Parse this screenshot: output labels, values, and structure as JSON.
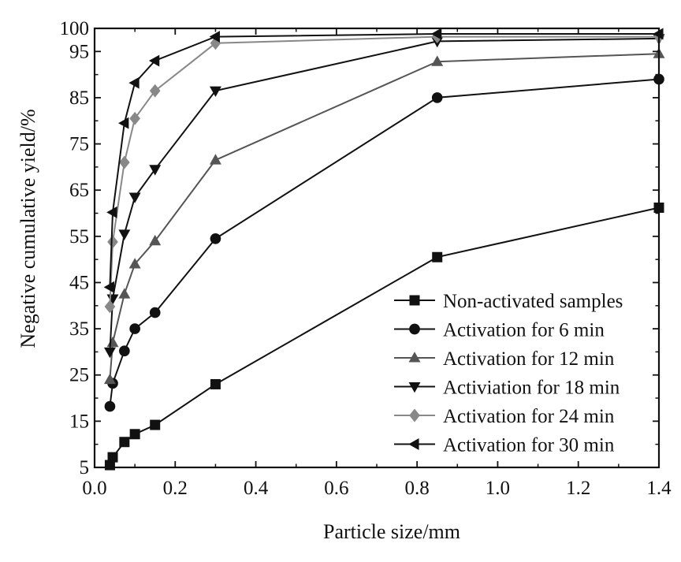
{
  "chart_data": {
    "type": "line",
    "xlabel": "Particle size/mm",
    "ylabel": "Negative cumulative yield/%",
    "xlim": [
      0.0,
      1.4
    ],
    "ylim": [
      5,
      100
    ],
    "x_ticks": [
      "0.0",
      "0.2",
      "0.4",
      "0.6",
      "0.8",
      "1.0",
      "1.2",
      "1.4"
    ],
    "y_ticks": [
      "5",
      "15",
      "25",
      "35",
      "45",
      "55",
      "65",
      "75",
      "85",
      "95",
      "100"
    ],
    "grid": false,
    "legend_position": "bottom-right",
    "series": [
      {
        "name": "Non-activated samples",
        "marker": "square",
        "color": "#111111",
        "x": [
          0.038,
          0.045,
          0.074,
          0.1,
          0.15,
          0.3,
          0.85,
          1.4
        ],
        "y": [
          5.5,
          7.2,
          10.5,
          12.2,
          14.2,
          23,
          50.5,
          61.2
        ]
      },
      {
        "name": "Activation for 6 min",
        "marker": "circle",
        "color": "#111111",
        "x": [
          0.038,
          0.045,
          0.074,
          0.1,
          0.15,
          0.3,
          0.85,
          1.4
        ],
        "y": [
          18.2,
          23.2,
          30.2,
          35,
          38.5,
          54.5,
          85,
          89
        ]
      },
      {
        "name": "Activation for 12 min",
        "marker": "triangle-up",
        "color": "#555555",
        "x": [
          0.038,
          0.045,
          0.074,
          0.1,
          0.15,
          0.3,
          0.85,
          1.4
        ],
        "y": [
          24,
          32,
          42.5,
          49,
          54,
          71.5,
          92.8,
          94.5
        ]
      },
      {
        "name": "Activiation for 18 min",
        "marker": "triangle-down",
        "color": "#111111",
        "x": [
          0.038,
          0.045,
          0.074,
          0.1,
          0.15,
          0.3,
          0.85,
          1.4
        ],
        "y": [
          30,
          41.5,
          55.5,
          63.5,
          69.5,
          86.5,
          97.2,
          97.8
        ]
      },
      {
        "name": "Activation for 24 min",
        "marker": "diamond",
        "color": "#888888",
        "x": [
          0.038,
          0.045,
          0.074,
          0.1,
          0.15,
          0.3,
          0.85,
          1.4
        ],
        "y": [
          39.8,
          53.8,
          71,
          80.5,
          86.5,
          96.8,
          98.2,
          98.2
        ]
      },
      {
        "name": "Activation for 30 min",
        "marker": "triangle-left",
        "color": "#111111",
        "x": [
          0.038,
          0.045,
          0.074,
          0.1,
          0.15,
          0.3,
          0.85,
          1.4
        ],
        "y": [
          44,
          60.2,
          79.5,
          88.2,
          93,
          98.2,
          98.8,
          98.8
        ]
      }
    ]
  }
}
